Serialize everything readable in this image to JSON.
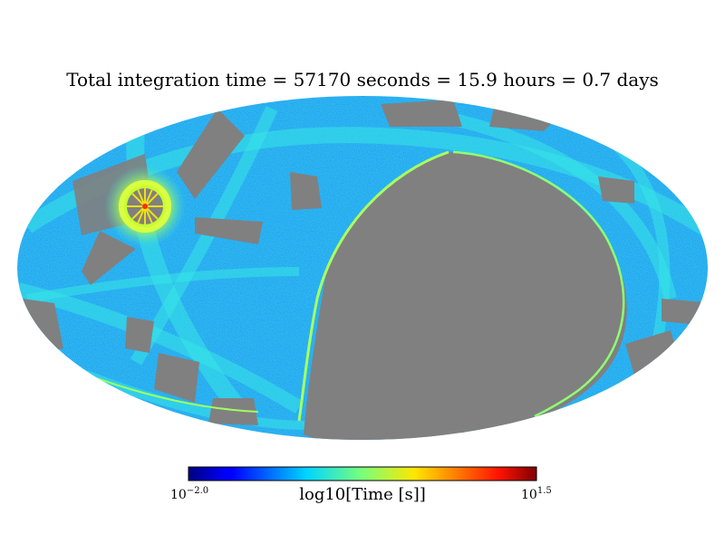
{
  "chart_data": {
    "type": "heatmap",
    "projection": "mollweide",
    "title": "Total integration time = 57170 seconds = 15.9 hours = 0.7 days",
    "colormap": "jet",
    "colorbar": {
      "label": "log10[Time [s]]",
      "min_base": "10",
      "min_exp": "−2.0",
      "max_base": "10",
      "max_exp": "1.5",
      "vmin": -2.0,
      "vmax": 1.5,
      "orientation": "horizontal",
      "placement": "bottom"
    },
    "unobserved_color": "#808080",
    "total_seconds": 57170,
    "total_hours": 15.9,
    "total_days": 0.7,
    "features": [
      {
        "name": "dense-pole-hotspot",
        "lon_deg": 120,
        "lat_deg": 35,
        "level": 0.62
      },
      {
        "name": "large-unobserved-region",
        "lon_deg": -45,
        "lat_deg": -10,
        "level": null
      }
    ]
  }
}
